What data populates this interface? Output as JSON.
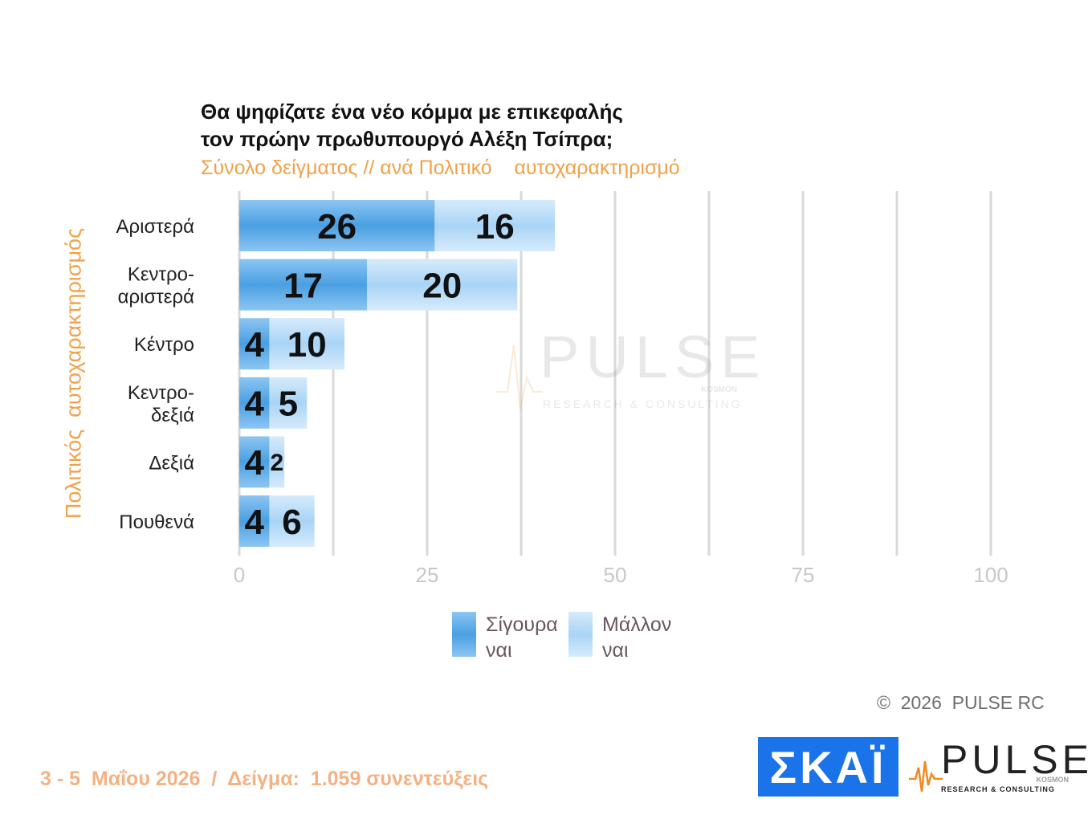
{
  "header": {
    "title_line1": "Θα ψηφίζατε ένα νέο κόμμα με επικεφαλής",
    "title_line2": "τον πρώην πρωθυπουργό Αλέξη Τσίπρα;",
    "subtitle": "Σύνολο δείγματος // ανά Πολιτικό    αυτοχαρακτηρισμό"
  },
  "chart_data": {
    "type": "bar",
    "orientation": "horizontal",
    "stacked": true,
    "categories": [
      "Αριστερά",
      "Κεντρο-\nαριστερά",
      "Κέντρο",
      "Κεντρο-\nδεξιά",
      "Δεξιά",
      "Πουθενά"
    ],
    "series": [
      {
        "name": "Σίγουρα ναι",
        "values": [
          26,
          17,
          4,
          4,
          4,
          4
        ],
        "color": "#5aaae8"
      },
      {
        "name": "Μάλλον ναι",
        "values": [
          16,
          20,
          10,
          5,
          2,
          6
        ],
        "color": "#b7dcf8"
      }
    ],
    "ylabel": "Πολιτικός  αυτοχαρακτηρισμός",
    "xlim": [
      0,
      100
    ],
    "xticks": [
      0,
      25,
      50,
      75,
      100
    ],
    "grid": true,
    "legend_position": "bottom"
  },
  "legend": {
    "item1_line1": "Σίγουρα",
    "item1_line2": "ναι",
    "item2_line1": "Μάλλον",
    "item2_line2": "ναι"
  },
  "watermark": {
    "brand": "PULSE",
    "tagline": "RESEARCH & CONSULTING",
    "kosmon": "KOSMON"
  },
  "copyright": "©  2026  PULSE RC",
  "footer": "3 - 5  Μαΐου 2026  /  Δείγμα:  1.059 συνεντεύξεις",
  "logos": {
    "skai": "ΣΚΑΪ",
    "pulse": "PULSE",
    "pulse_kosmon": "KOSMON",
    "pulse_tagline": "RESEARCH & CONSULTING"
  }
}
